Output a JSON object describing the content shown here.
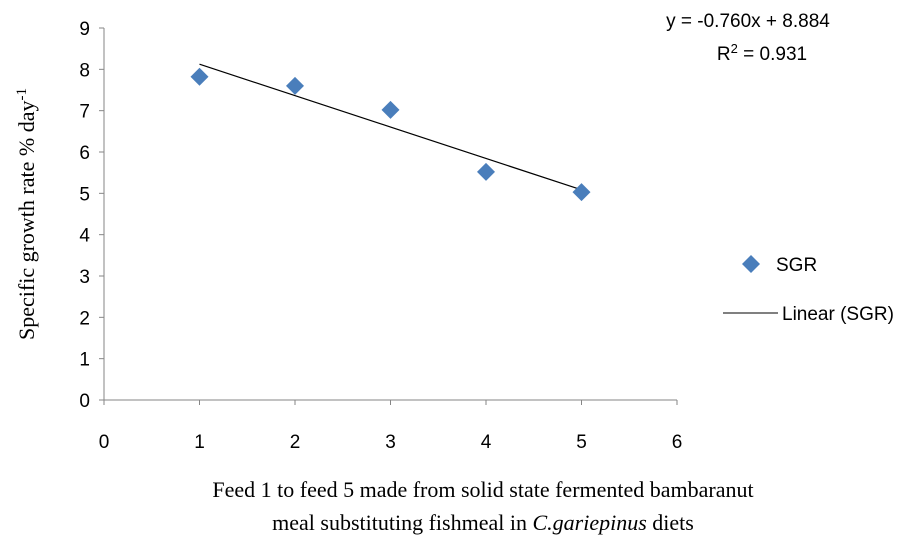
{
  "chart_data": {
    "type": "scatter",
    "series": [
      {
        "name": "SGR",
        "x": [
          1,
          2,
          3,
          4,
          5
        ],
        "y": [
          7.82,
          7.6,
          7.02,
          5.52,
          5.03
        ],
        "color": "#4a7ebb",
        "marker": "diamond"
      }
    ],
    "trendline": {
      "name": "Linear (SGR)",
      "type": "linear",
      "slope": -0.76,
      "intercept": 8.884,
      "x_range": [
        1,
        5
      ],
      "color": "#000000",
      "equation_text": "y = -0.760x + 8.884",
      "r2_prefix": "R",
      "r2_sup": "2",
      "r2_value": " = 0.931"
    },
    "xlim": [
      0,
      6
    ],
    "ylim": [
      0,
      9
    ],
    "xticks": [
      "0",
      "1",
      "2",
      "3",
      "4",
      "5",
      "6"
    ],
    "yticks": [
      "0",
      "1",
      "2",
      "3",
      "4",
      "5",
      "6",
      "7",
      "8",
      "9"
    ],
    "xlabel": {
      "line1": "Feed  1 to feed 5 made from solid state fermented bambaranut",
      "line2_before": "meal  substituting fishmeal in ",
      "line2_italic": "C.gariepinus",
      "line2_after": " diets"
    },
    "ylabel": {
      "main": "Specific growth rate % day",
      "sup": "-1"
    },
    "grid": false,
    "legend_position": "right"
  }
}
